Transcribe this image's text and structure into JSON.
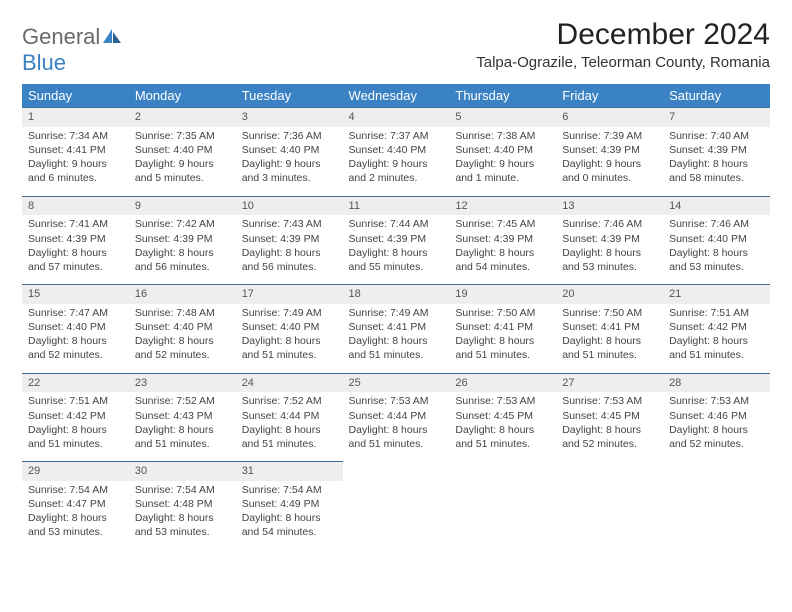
{
  "logo": {
    "part1": "General",
    "part2": "Blue"
  },
  "title": "December 2024",
  "location": "Talpa-Ograzile, Teleorman County, Romania",
  "colors": {
    "header_bg": "#3b82c4",
    "header_text": "#ffffff",
    "daynum_bg": "#eeeeee",
    "row_border": "#3b6fa0",
    "logo_gray": "#6a6a6a",
    "logo_blue": "#3b82c4"
  },
  "day_headers": [
    "Sunday",
    "Monday",
    "Tuesday",
    "Wednesday",
    "Thursday",
    "Friday",
    "Saturday"
  ],
  "weeks": [
    {
      "nums": [
        "1",
        "2",
        "3",
        "4",
        "5",
        "6",
        "7"
      ],
      "cells": [
        {
          "sr": "7:34 AM",
          "ss": "4:41 PM",
          "dl": "9 hours and 6 minutes."
        },
        {
          "sr": "7:35 AM",
          "ss": "4:40 PM",
          "dl": "9 hours and 5 minutes."
        },
        {
          "sr": "7:36 AM",
          "ss": "4:40 PM",
          "dl": "9 hours and 3 minutes."
        },
        {
          "sr": "7:37 AM",
          "ss": "4:40 PM",
          "dl": "9 hours and 2 minutes."
        },
        {
          "sr": "7:38 AM",
          "ss": "4:40 PM",
          "dl": "9 hours and 1 minute."
        },
        {
          "sr": "7:39 AM",
          "ss": "4:39 PM",
          "dl": "9 hours and 0 minutes."
        },
        {
          "sr": "7:40 AM",
          "ss": "4:39 PM",
          "dl": "8 hours and 58 minutes."
        }
      ]
    },
    {
      "nums": [
        "8",
        "9",
        "10",
        "11",
        "12",
        "13",
        "14"
      ],
      "cells": [
        {
          "sr": "7:41 AM",
          "ss": "4:39 PM",
          "dl": "8 hours and 57 minutes."
        },
        {
          "sr": "7:42 AM",
          "ss": "4:39 PM",
          "dl": "8 hours and 56 minutes."
        },
        {
          "sr": "7:43 AM",
          "ss": "4:39 PM",
          "dl": "8 hours and 56 minutes."
        },
        {
          "sr": "7:44 AM",
          "ss": "4:39 PM",
          "dl": "8 hours and 55 minutes."
        },
        {
          "sr": "7:45 AM",
          "ss": "4:39 PM",
          "dl": "8 hours and 54 minutes."
        },
        {
          "sr": "7:46 AM",
          "ss": "4:39 PM",
          "dl": "8 hours and 53 minutes."
        },
        {
          "sr": "7:46 AM",
          "ss": "4:40 PM",
          "dl": "8 hours and 53 minutes."
        }
      ]
    },
    {
      "nums": [
        "15",
        "16",
        "17",
        "18",
        "19",
        "20",
        "21"
      ],
      "cells": [
        {
          "sr": "7:47 AM",
          "ss": "4:40 PM",
          "dl": "8 hours and 52 minutes."
        },
        {
          "sr": "7:48 AM",
          "ss": "4:40 PM",
          "dl": "8 hours and 52 minutes."
        },
        {
          "sr": "7:49 AM",
          "ss": "4:40 PM",
          "dl": "8 hours and 51 minutes."
        },
        {
          "sr": "7:49 AM",
          "ss": "4:41 PM",
          "dl": "8 hours and 51 minutes."
        },
        {
          "sr": "7:50 AM",
          "ss": "4:41 PM",
          "dl": "8 hours and 51 minutes."
        },
        {
          "sr": "7:50 AM",
          "ss": "4:41 PM",
          "dl": "8 hours and 51 minutes."
        },
        {
          "sr": "7:51 AM",
          "ss": "4:42 PM",
          "dl": "8 hours and 51 minutes."
        }
      ]
    },
    {
      "nums": [
        "22",
        "23",
        "24",
        "25",
        "26",
        "27",
        "28"
      ],
      "cells": [
        {
          "sr": "7:51 AM",
          "ss": "4:42 PM",
          "dl": "8 hours and 51 minutes."
        },
        {
          "sr": "7:52 AM",
          "ss": "4:43 PM",
          "dl": "8 hours and 51 minutes."
        },
        {
          "sr": "7:52 AM",
          "ss": "4:44 PM",
          "dl": "8 hours and 51 minutes."
        },
        {
          "sr": "7:53 AM",
          "ss": "4:44 PM",
          "dl": "8 hours and 51 minutes."
        },
        {
          "sr": "7:53 AM",
          "ss": "4:45 PM",
          "dl": "8 hours and 51 minutes."
        },
        {
          "sr": "7:53 AM",
          "ss": "4:45 PM",
          "dl": "8 hours and 52 minutes."
        },
        {
          "sr": "7:53 AM",
          "ss": "4:46 PM",
          "dl": "8 hours and 52 minutes."
        }
      ]
    },
    {
      "nums": [
        "29",
        "30",
        "31",
        "",
        "",
        "",
        ""
      ],
      "cells": [
        {
          "sr": "7:54 AM",
          "ss": "4:47 PM",
          "dl": "8 hours and 53 minutes."
        },
        {
          "sr": "7:54 AM",
          "ss": "4:48 PM",
          "dl": "8 hours and 53 minutes."
        },
        {
          "sr": "7:54 AM",
          "ss": "4:49 PM",
          "dl": "8 hours and 54 minutes."
        },
        null,
        null,
        null,
        null
      ]
    }
  ]
}
